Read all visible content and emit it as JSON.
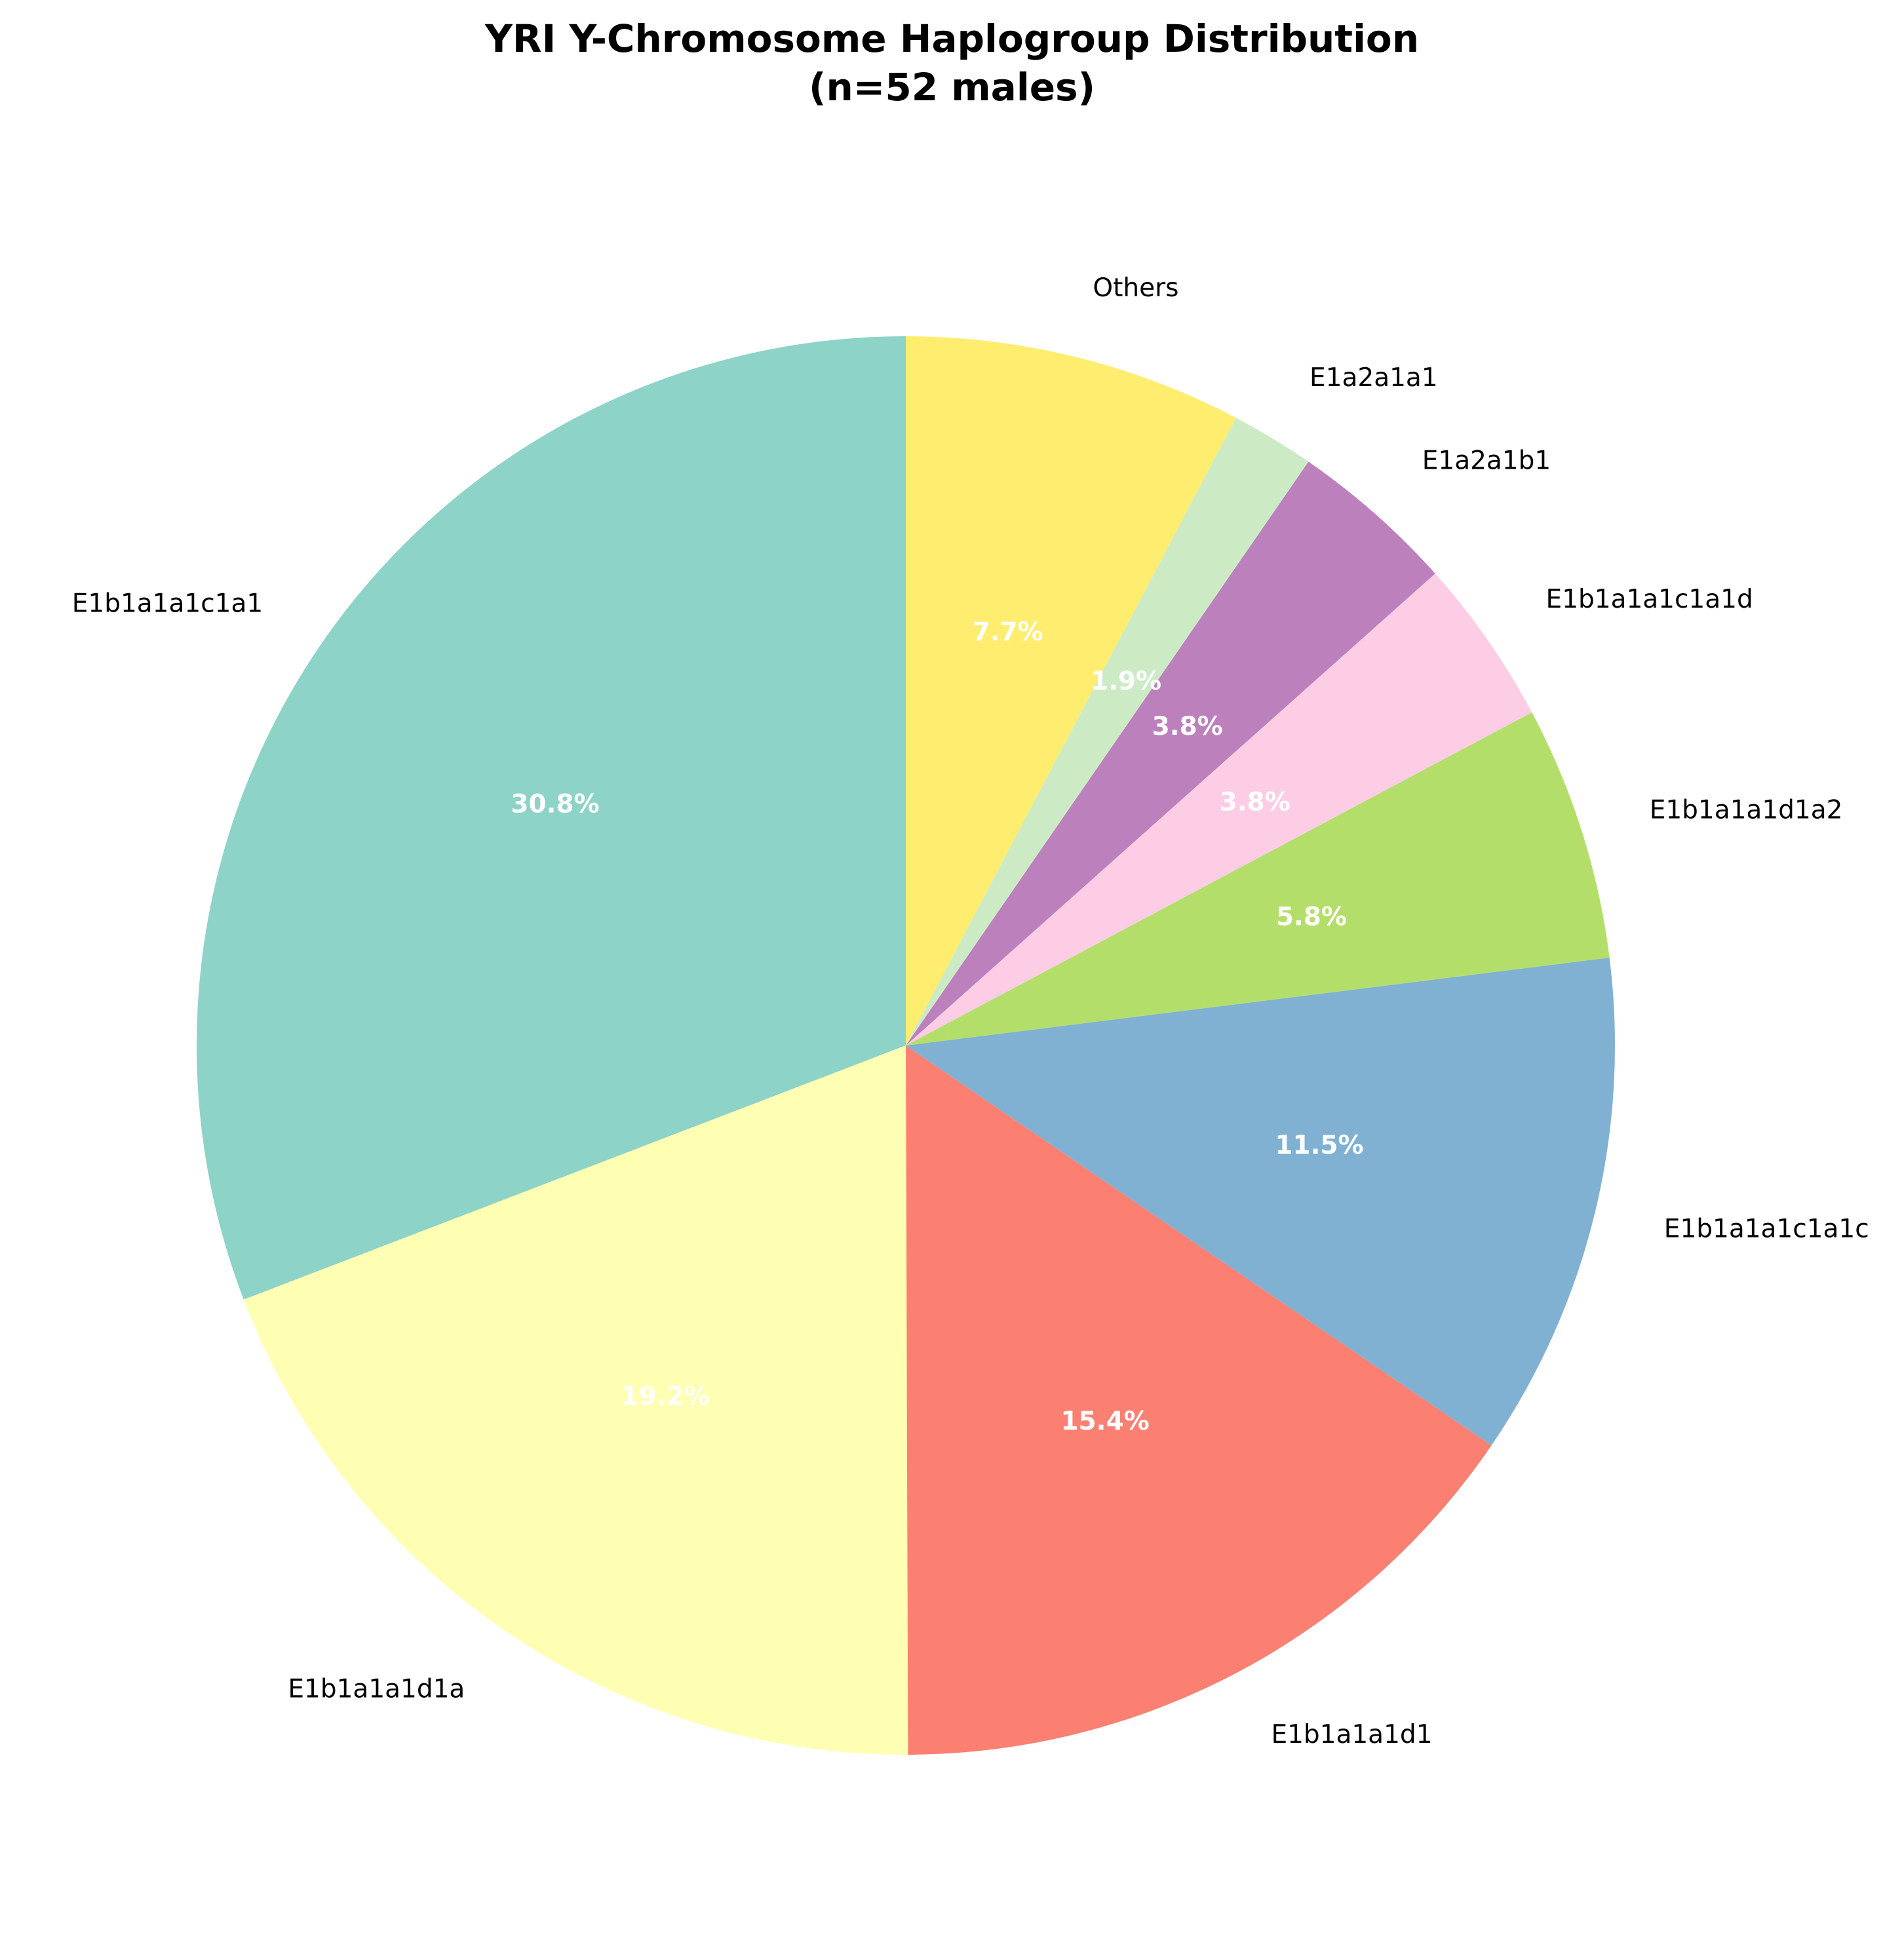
{
  "chart_data": {
    "type": "pie",
    "title": "YRI Y-Chromosome Haplogroup Distribution",
    "subtitle": "(n=52 males)",
    "start_angle": "top, counter-clockwise",
    "slices": [
      {
        "label": "E1b1a1a1c1a1",
        "value": 30.8,
        "pct_label": "30.8%",
        "color": "#8dd3c7"
      },
      {
        "label": "E1b1a1a1d1a",
        "value": 19.2,
        "pct_label": "19.2%",
        "color": "#ffffb3"
      },
      {
        "label": "E1b1a1a1d1",
        "value": 15.4,
        "pct_label": "15.4%",
        "color": "#fb8072"
      },
      {
        "label": "E1b1a1a1c1a1c",
        "value": 11.5,
        "pct_label": "11.5%",
        "color": "#80b1d3"
      },
      {
        "label": "E1b1a1a1d1a2",
        "value": 5.8,
        "pct_label": "5.8%",
        "color": "#b3de69"
      },
      {
        "label": "E1b1a1a1c1a1d",
        "value": 3.8,
        "pct_label": "3.8%",
        "color": "#fccde5"
      },
      {
        "label": "E1a2a1b1",
        "value": 3.8,
        "pct_label": "3.8%",
        "color": "#bc80bd"
      },
      {
        "label": "E1a2a1a1",
        "value": 1.9,
        "pct_label": "1.9%",
        "color": "#ccebc5"
      },
      {
        "label": "Others",
        "value": 7.7,
        "pct_label": "7.7%",
        "color": "#ffed6f"
      }
    ]
  }
}
